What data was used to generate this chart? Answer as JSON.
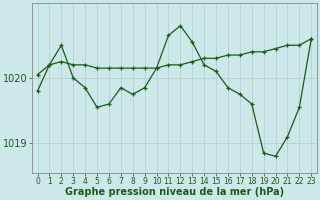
{
  "title": "Graphe pression niveau de la mer (hPa)",
  "background_color": "#cce8e8",
  "grid_color": "#b8d4d4",
  "line_color": "#1a5c1a",
  "x_labels": [
    "0",
    "1",
    "2",
    "3",
    "4",
    "5",
    "6",
    "7",
    "8",
    "9",
    "10",
    "11",
    "12",
    "13",
    "14",
    "15",
    "16",
    "17",
    "18",
    "19",
    "20",
    "21",
    "22",
    "23"
  ],
  "series1": [
    1019.8,
    1020.2,
    1020.5,
    1020.0,
    1019.85,
    1019.55,
    1019.6,
    1019.85,
    1019.75,
    1019.85,
    1020.15,
    1020.65,
    1020.8,
    1020.55,
    1020.2,
    1020.1,
    1019.85,
    1019.75,
    1019.6,
    1018.85,
    1018.8,
    1019.1,
    1019.55,
    1020.6
  ],
  "series2": [
    1020.05,
    1020.2,
    1020.25,
    1020.2,
    1020.2,
    1020.15,
    1020.15,
    1020.15,
    1020.15,
    1020.15,
    1020.15,
    1020.2,
    1020.2,
    1020.25,
    1020.3,
    1020.3,
    1020.35,
    1020.35,
    1020.4,
    1020.4,
    1020.45,
    1020.5,
    1020.5,
    1020.6
  ],
  "ylim": [
    1018.55,
    1021.15
  ],
  "yticks": [
    1019.0,
    1020.0
  ],
  "figsize": [
    3.2,
    2.0
  ],
  "dpi": 100,
  "ylabel_fontsize": 7,
  "xlabel_fontsize": 5.5,
  "title_fontsize": 7
}
